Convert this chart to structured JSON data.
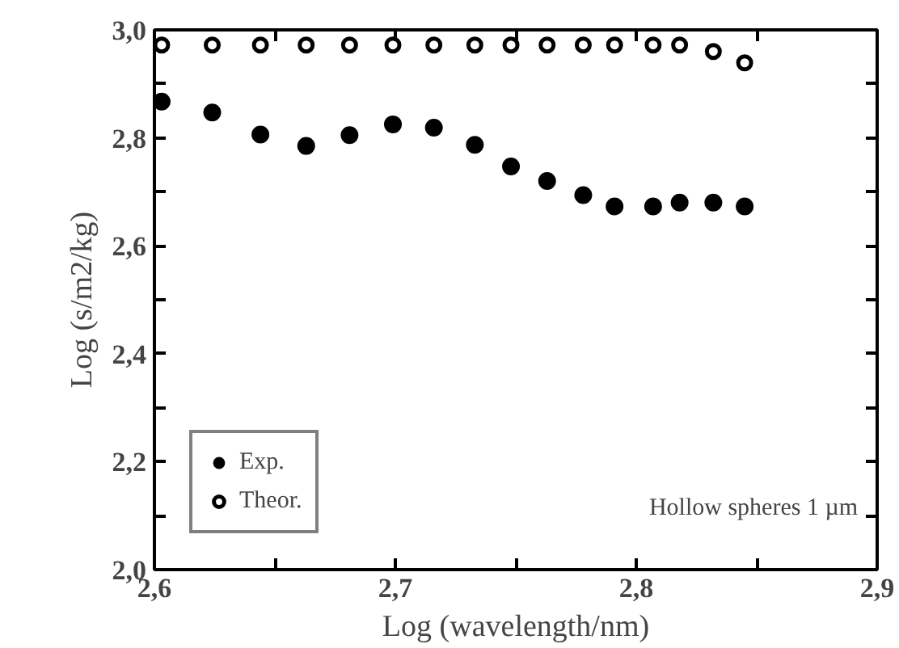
{
  "chart_data": {
    "type": "scatter",
    "xlabel": "Log (wavelength/nm)",
    "ylabel": "Log (s/m2/kg)",
    "x": [
      2.603,
      2.624,
      2.644,
      2.663,
      2.681,
      2.699,
      2.716,
      2.733,
      2.748,
      2.763,
      2.778,
      2.791,
      2.807,
      2.818,
      2.832,
      2.845
    ],
    "series": [
      {
        "name": "Exp.",
        "color": "#000000",
        "marker": "circle",
        "values": [
          2.867,
          2.847,
          2.806,
          2.785,
          2.805,
          2.825,
          2.819,
          2.787,
          2.747,
          2.72,
          2.694,
          2.673,
          2.673,
          2.68,
          2.68,
          2.673
        ]
      },
      {
        "name": "Theor.",
        "color": "#000000",
        "marker": "open_circle",
        "values": [
          2.972,
          2.972,
          2.972,
          2.972,
          2.972,
          2.972,
          2.972,
          2.972,
          2.972,
          2.972,
          2.972,
          2.972,
          2.972,
          2.972,
          2.96,
          2.939
        ]
      }
    ],
    "xlim": [
      2.6,
      2.9
    ],
    "xticks": [
      {
        "value": 2.6,
        "label": "2,6"
      },
      {
        "value": 2.65,
        "label": null
      },
      {
        "value": 2.7,
        "label": "2,7"
      },
      {
        "value": 2.75,
        "label": null
      },
      {
        "value": 2.8,
        "label": "2,8"
      },
      {
        "value": 2.85,
        "label": null
      },
      {
        "value": 2.9,
        "label": "2,9"
      }
    ],
    "ylim": [
      2.0,
      3.0
    ],
    "yticks": [
      {
        "value": 2.0,
        "label": "2,0"
      },
      {
        "value": 2.1,
        "label": null
      },
      {
        "value": 2.2,
        "label": "2,2"
      },
      {
        "value": 2.3,
        "label": null
      },
      {
        "value": 2.4,
        "label": "2,4"
      },
      {
        "value": 2.5,
        "label": null
      },
      {
        "value": 2.6,
        "label": "2,6"
      },
      {
        "value": 2.7,
        "label": null
      },
      {
        "value": 2.8,
        "label": "2,8"
      },
      {
        "value": 2.9,
        "label": null
      },
      {
        "value": 3.0,
        "label": "3,0"
      }
    ],
    "annotations": [
      "Hollow spheres 1 µm"
    ],
    "legend": "bottom left",
    "grid": false
  }
}
